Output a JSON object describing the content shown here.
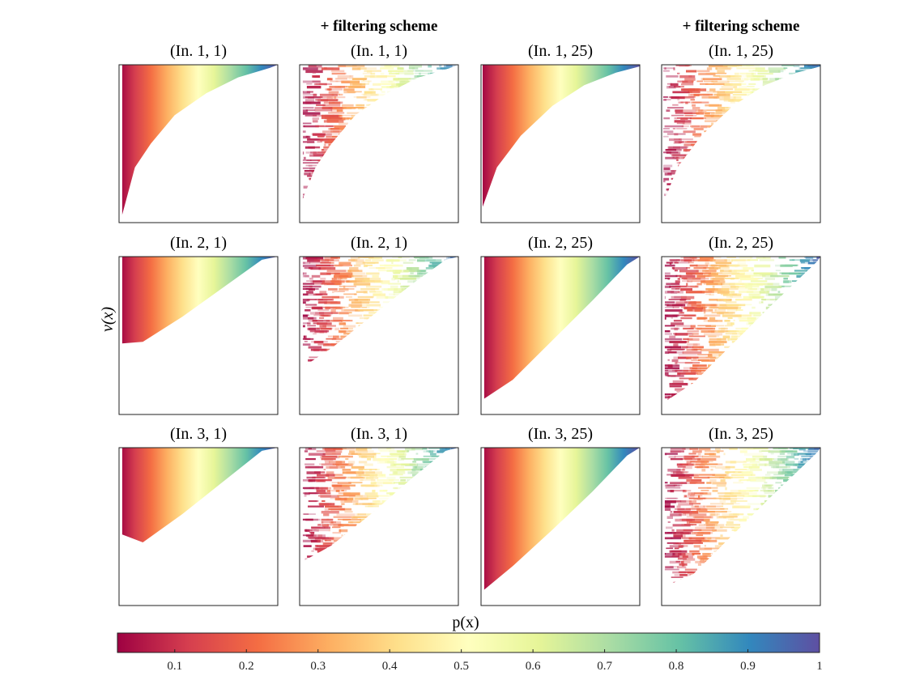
{
  "figure": {
    "column_headers": [
      "",
      "+ filtering scheme",
      "",
      "+ filtering scheme"
    ],
    "ylabel": "v(x)",
    "colorbar_label": "p(x)"
  },
  "chart_data": {
    "type": "heatmap",
    "title": "",
    "xlabel": "p(x)",
    "ylabel": "v(x)",
    "grid": false,
    "panels": [
      {
        "row": 1,
        "col": 1,
        "title": "(In. 1, 1)",
        "filtered": false,
        "curve": "concave",
        "boundary": [
          [
            0.02,
            0.05
          ],
          [
            0.1,
            0.35
          ],
          [
            0.2,
            0.5
          ],
          [
            0.35,
            0.68
          ],
          [
            0.55,
            0.82
          ],
          [
            0.75,
            0.92
          ],
          [
            0.95,
            0.98
          ]
        ]
      },
      {
        "row": 1,
        "col": 2,
        "title": "(In. 1, 1)",
        "filtered": true,
        "curve": "concave",
        "boundary": [
          [
            0.02,
            0.15
          ],
          [
            0.1,
            0.35
          ],
          [
            0.2,
            0.5
          ],
          [
            0.35,
            0.68
          ],
          [
            0.55,
            0.82
          ],
          [
            0.75,
            0.92
          ],
          [
            0.95,
            0.98
          ]
        ]
      },
      {
        "row": 1,
        "col": 3,
        "title": "(In. 1, 25)",
        "filtered": false,
        "curve": "concave",
        "boundary": [
          [
            0.01,
            0.1
          ],
          [
            0.1,
            0.35
          ],
          [
            0.25,
            0.55
          ],
          [
            0.45,
            0.74
          ],
          [
            0.65,
            0.87
          ],
          [
            0.85,
            0.95
          ],
          [
            1.0,
            0.99
          ]
        ]
      },
      {
        "row": 1,
        "col": 4,
        "title": "(In. 1, 25)",
        "filtered": true,
        "curve": "concave",
        "boundary": [
          [
            0.01,
            0.12
          ],
          [
            0.1,
            0.35
          ],
          [
            0.25,
            0.55
          ],
          [
            0.45,
            0.74
          ],
          [
            0.65,
            0.87
          ],
          [
            0.85,
            0.95
          ],
          [
            1.0,
            0.99
          ]
        ]
      },
      {
        "row": 2,
        "col": 1,
        "title": "(In. 2, 1)",
        "filtered": false,
        "curve": "linear",
        "boundary": [
          [
            0.02,
            0.45
          ],
          [
            0.15,
            0.46
          ],
          [
            0.4,
            0.62
          ],
          [
            0.65,
            0.8
          ],
          [
            0.9,
            0.98
          ]
        ]
      },
      {
        "row": 2,
        "col": 2,
        "title": "(In. 2, 1)",
        "filtered": true,
        "curve": "linear",
        "boundary": [
          [
            0.02,
            0.3
          ],
          [
            0.2,
            0.42
          ],
          [
            0.45,
            0.62
          ],
          [
            0.7,
            0.82
          ],
          [
            0.92,
            0.98
          ]
        ]
      },
      {
        "row": 2,
        "col": 3,
        "title": "(In. 2, 25)",
        "filtered": false,
        "curve": "linear",
        "boundary": [
          [
            0.02,
            0.1
          ],
          [
            0.2,
            0.22
          ],
          [
            0.45,
            0.47
          ],
          [
            0.7,
            0.72
          ],
          [
            0.92,
            0.95
          ]
        ]
      },
      {
        "row": 2,
        "col": 4,
        "title": "(In. 2, 25)",
        "filtered": true,
        "curve": "linear",
        "boundary": [
          [
            0.02,
            0.08
          ],
          [
            0.2,
            0.2
          ],
          [
            0.45,
            0.45
          ],
          [
            0.7,
            0.7
          ],
          [
            0.98,
            0.97
          ]
        ]
      },
      {
        "row": 3,
        "col": 1,
        "title": "(In. 3, 1)",
        "filtered": false,
        "curve": "linear",
        "boundary": [
          [
            0.02,
            0.45
          ],
          [
            0.15,
            0.4
          ],
          [
            0.4,
            0.58
          ],
          [
            0.65,
            0.78
          ],
          [
            0.9,
            0.98
          ]
        ]
      },
      {
        "row": 3,
        "col": 2,
        "title": "(In. 3, 1)",
        "filtered": true,
        "curve": "linear",
        "boundary": [
          [
            0.02,
            0.28
          ],
          [
            0.2,
            0.38
          ],
          [
            0.45,
            0.58
          ],
          [
            0.7,
            0.8
          ],
          [
            0.92,
            0.98
          ]
        ]
      },
      {
        "row": 3,
        "col": 3,
        "title": "(In. 3, 25)",
        "filtered": false,
        "curve": "linear",
        "boundary": [
          [
            0.02,
            0.1
          ],
          [
            0.2,
            0.25
          ],
          [
            0.45,
            0.48
          ],
          [
            0.7,
            0.72
          ],
          [
            0.92,
            0.95
          ]
        ]
      },
      {
        "row": 3,
        "col": 4,
        "title": "(In. 3, 25)",
        "filtered": true,
        "curve": "linear",
        "boundary": [
          [
            0.02,
            0.12
          ],
          [
            0.2,
            0.2
          ],
          [
            0.45,
            0.45
          ],
          [
            0.7,
            0.7
          ],
          [
            0.98,
            0.97
          ]
        ]
      }
    ],
    "colorbar": {
      "label": "p(x)",
      "range": [
        0.02,
        1
      ],
      "ticks": [
        0.1,
        0.2,
        0.3,
        0.4,
        0.5,
        0.6,
        0.7,
        0.8,
        0.9,
        1
      ],
      "tick_labels": [
        "0.1",
        "0.2",
        "0.3",
        "0.4",
        "0.5",
        "0.6",
        "0.7",
        "0.8",
        "0.9",
        "1"
      ],
      "colormap": "spectral",
      "colors": [
        "#9e0142",
        "#d53e4f",
        "#f46d43",
        "#fdae61",
        "#fee08b",
        "#ffffbf",
        "#e6f598",
        "#abdda4",
        "#66c2a5",
        "#3288bd",
        "#5e4fa2"
      ]
    }
  }
}
